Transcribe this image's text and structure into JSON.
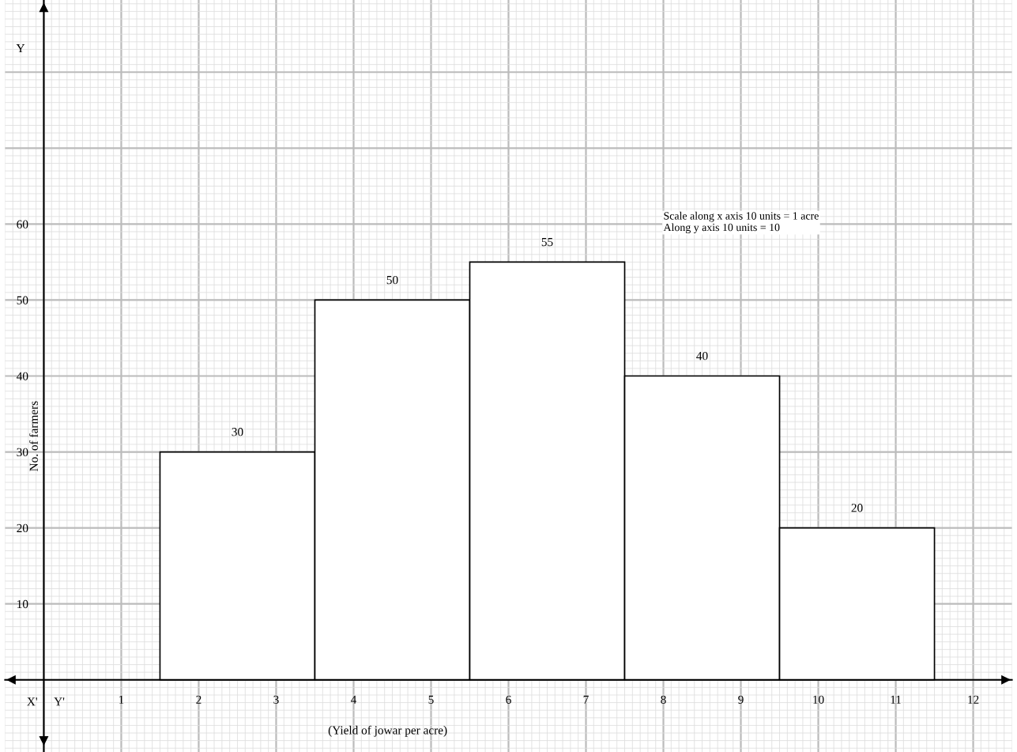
{
  "chart_data": {
    "type": "histogram",
    "xlabel": "(Yield of jowar per acre)",
    "ylabel": "No. of farmers",
    "bins": [
      1.5,
      3.5,
      5.5,
      7.5,
      9.5,
      11.5
    ],
    "values": [
      30,
      50,
      55,
      40,
      20
    ],
    "color": "#ffffff",
    "data_labels": true,
    "xlim": [
      -0.5,
      12.5
    ],
    "ylim": [
      -9.5,
      89.5
    ],
    "xticks": [
      1,
      2,
      3,
      4,
      5,
      6,
      7,
      8,
      9,
      10,
      11,
      12
    ],
    "yticks": [
      10,
      20,
      30,
      40,
      50,
      60
    ],
    "grid": true,
    "annotations": [
      "Scale along x axis 10 units = 1 acre\nAlong y axis 10 units = 10",
      "Y",
      "X'",
      "Y'"
    ]
  }
}
